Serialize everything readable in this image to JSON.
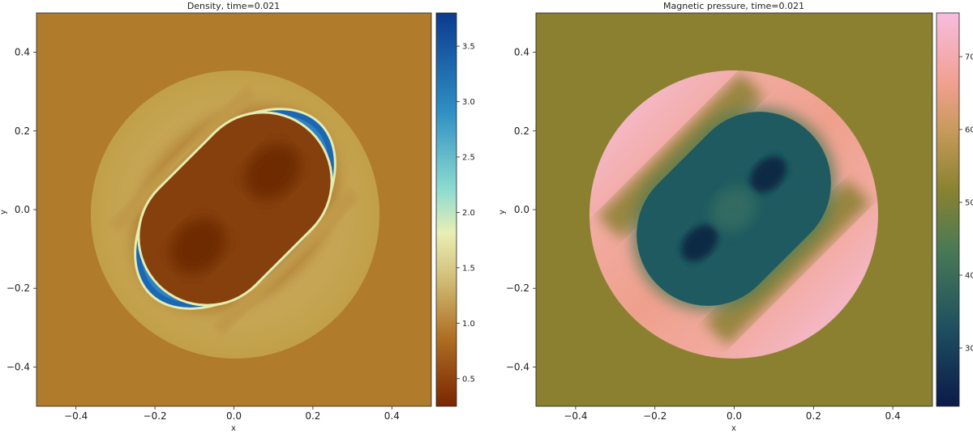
{
  "chart_data": [
    {
      "type": "heatmap",
      "title": "Density, time=0.021",
      "xlabel": "x",
      "ylabel": "y",
      "xlim": [
        -0.5,
        0.5
      ],
      "ylim": [
        -0.5,
        0.5
      ],
      "xticks": [
        -0.4,
        -0.2,
        0.0,
        0.2,
        0.4
      ],
      "xtick_labels": [
        "−0.4",
        "−0.2",
        "0.0",
        "0.2",
        "0.4"
      ],
      "yticks": [
        0.4,
        0.2,
        0.0,
        -0.2,
        -0.4
      ],
      "ytick_labels": [
        "0.4",
        "0.2",
        "0.0",
        "−0.2",
        "−0.4"
      ],
      "colormap": "brown-to-cyan-to-blue",
      "colormap_stops": [
        "#7a2600",
        "#b07226",
        "#d4c07a",
        "#e9efb5",
        "#8ddcd0",
        "#2f8fc3",
        "#0b3a8f"
      ],
      "colorbar_range": [
        0.25,
        3.8
      ],
      "colorbar_ticks": [
        0.5,
        1.0,
        1.5,
        2.0,
        2.5,
        3.0,
        3.5
      ],
      "colorbar_tick_labels": [
        "0.5",
        "1.0",
        "1.5",
        "2.0",
        "2.5",
        "3.0",
        "3.5"
      ],
      "background_color": "#b07c2b",
      "outer_disk_color": "#c5a54e",
      "inner_region_color": "#86400d",
      "shell_color": "#1c67b3"
    },
    {
      "type": "heatmap",
      "title": "Magnetic pressure, time=0.021",
      "xlabel": "x",
      "ylabel": "y",
      "xlim": [
        -0.5,
        0.5
      ],
      "ylim": [
        -0.5,
        0.5
      ],
      "xticks": [
        -0.4,
        -0.2,
        0.0,
        0.2,
        0.4
      ],
      "xtick_labels": [
        "−0.4",
        "−0.2",
        "0.0",
        "0.2",
        "0.4"
      ],
      "yticks": [
        0.4,
        0.2,
        0.0,
        -0.2,
        -0.4
      ],
      "ytick_labels": [
        "0.4",
        "0.2",
        "0.0",
        "−0.2",
        "−0.4"
      ],
      "colormap": "navy-teal-olive-salmon-pink",
      "colormap_stops": [
        "#0b1a4a",
        "#1e5060",
        "#4a7a55",
        "#8a8230",
        "#c79a5a",
        "#f0a090",
        "#f7bde0"
      ],
      "colorbar_range": [
        22,
        76
      ],
      "colorbar_ticks": [
        30,
        40,
        50,
        60,
        70
      ],
      "colorbar_tick_labels": [
        "30",
        "40",
        "50",
        "60",
        "70"
      ],
      "background_color": "#8a8030",
      "ring_pink_color": "#f6c3e8",
      "ring_salmon_color": "#f0a292",
      "inner_region_color": "#1e5a60"
    }
  ]
}
